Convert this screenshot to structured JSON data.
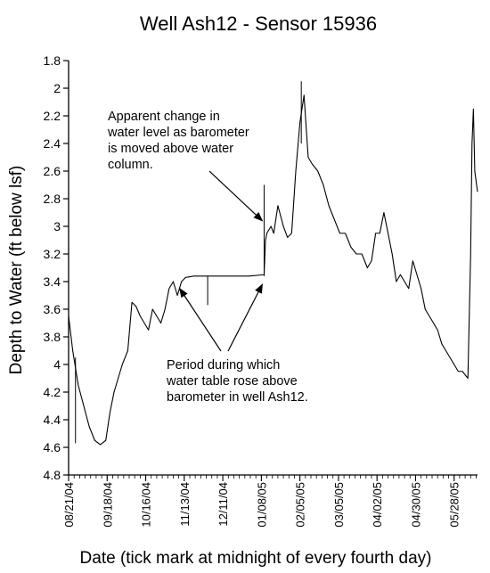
{
  "chart_data": {
    "type": "line",
    "title": "Well Ash12 - Sensor 15936",
    "xlabel": "Date (tick mark at midnight of every fourth day)",
    "ylabel": "Depth to Water (ft below lsf)",
    "ylim": [
      1.8,
      4.8
    ],
    "y_inverted": true,
    "yticks": [
      "1.8",
      "2",
      "2.2",
      "2.4",
      "2.6",
      "2.8",
      "3",
      "3.2",
      "3.4",
      "3.6",
      "3.8",
      "4",
      "4.2",
      "4.4",
      "4.6",
      "4.8"
    ],
    "x_start": "08/21/04",
    "x_end": "06/14/05",
    "xtick_labels": [
      "08/21/04",
      "09/18/04",
      "10/16/04",
      "11/13/04",
      "12/11/04",
      "01/08/05",
      "02/05/05",
      "03/05/05",
      "04/02/05",
      "04/30/05",
      "05/28/05"
    ],
    "minor_tick_interval_days": 4,
    "grid": false,
    "legend": "none",
    "series": [
      {
        "x": [
          "08/21/04",
          "08/24/04",
          "08/28/04",
          "09/01/04",
          "09/05/04",
          "09/09/04",
          "09/13/04",
          "09/17/04",
          "09/20/04",
          "09/23/04",
          "09/26/04",
          "09/29/04",
          "10/03/04",
          "10/06/04",
          "10/09/04",
          "10/12/04",
          "10/15/04",
          "10/18/04",
          "10/21/04",
          "10/24/04",
          "10/27/04",
          "10/30/04",
          "11/02/04",
          "11/05/04",
          "11/08/04",
          "11/11/04",
          "11/14/04",
          "11/20/04",
          "12/01/04",
          "12/15/04",
          "12/30/04",
          "01/10/05",
          "01/11/05",
          "01/12/05",
          "01/15/05",
          "01/17/05",
          "01/20/05",
          "01/24/05",
          "01/27/05",
          "01/30/05",
          "02/02/05",
          "02/05/05",
          "02/08/05",
          "02/11/05",
          "02/14/05",
          "02/18/05",
          "02/22/05",
          "02/26/05",
          "03/02/05",
          "03/06/05",
          "03/10/05",
          "03/14/05",
          "03/18/05",
          "03/22/05",
          "03/26/05",
          "03/29/05",
          "04/01/05",
          "04/04/05",
          "04/07/05",
          "04/10/05",
          "04/13/05",
          "04/16/05",
          "04/19/05",
          "04/22/05",
          "04/25/05",
          "04/28/05",
          "05/01/05",
          "05/04/05",
          "05/07/05",
          "05/10/05",
          "05/13/05",
          "05/16/05",
          "05/19/05",
          "05/22/05",
          "05/25/05",
          "05/28/05",
          "05/31/05",
          "06/03/05",
          "06/07/05",
          "06/09/05",
          "06/10/05",
          "06/11/05",
          "06/12/05",
          "06/14/05"
        ],
        "y": [
          3.65,
          3.9,
          4.15,
          4.3,
          4.45,
          4.55,
          4.58,
          4.55,
          4.35,
          4.2,
          4.1,
          4.0,
          3.9,
          3.55,
          3.58,
          3.65,
          3.7,
          3.75,
          3.6,
          3.65,
          3.7,
          3.6,
          3.45,
          3.4,
          3.5,
          3.4,
          3.37,
          3.36,
          3.36,
          3.36,
          3.36,
          3.35,
          3.1,
          3.05,
          3.0,
          3.05,
          2.85,
          3.0,
          3.08,
          3.05,
          2.6,
          2.25,
          2.05,
          2.5,
          2.55,
          2.6,
          2.7,
          2.85,
          2.95,
          3.05,
          3.05,
          3.15,
          3.2,
          3.2,
          3.3,
          3.25,
          3.05,
          3.05,
          2.9,
          3.05,
          3.2,
          3.4,
          3.35,
          3.4,
          3.45,
          3.25,
          3.35,
          3.45,
          3.6,
          3.65,
          3.7,
          3.75,
          3.85,
          3.9,
          3.95,
          4.0,
          4.05,
          4.05,
          4.1,
          3.2,
          2.4,
          2.15,
          2.6,
          2.75
        ]
      }
    ],
    "spikes": [
      {
        "x": "08/26/04",
        "top": 3.95,
        "bottom": 4.57
      },
      {
        "x": "11/30/04",
        "top": 3.36,
        "bottom": 3.57
      },
      {
        "x": "01/10/05",
        "top": 2.7,
        "bottom": 3.36
      },
      {
        "x": "02/06/05",
        "top": 1.95,
        "bottom": 2.4
      }
    ],
    "annotations": [
      {
        "lines": [
          "Apparent change in",
          "water level as barometer",
          "is moved above water",
          "column."
        ],
        "arrow_targets": [
          {
            "x": "01/10/05",
            "y": 2.96
          }
        ]
      },
      {
        "lines": [
          "Period during which",
          "water table rose above",
          "barometer in well Ash12."
        ],
        "arrow_targets": [
          {
            "x": "11/11/04",
            "y": 3.45
          },
          {
            "x": "01/10/05",
            "y": 3.42
          }
        ]
      }
    ]
  }
}
